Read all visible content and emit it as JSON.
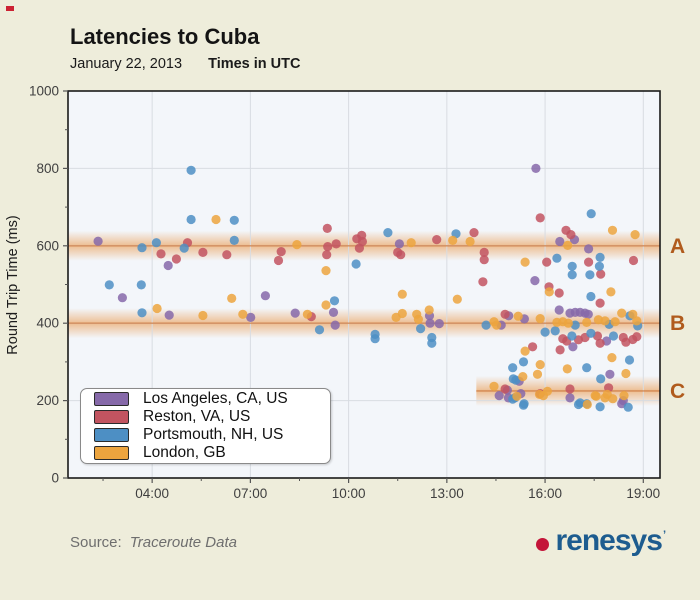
{
  "header": {
    "title": "Latencies to Cuba",
    "date": "January 22, 2013",
    "times_note": "Times in UTC"
  },
  "footer": {
    "source_label": "Source:",
    "source_value": "Traceroute Data",
    "logo_text": "renesys",
    "logo_mark": "’"
  },
  "colors": {
    "page_bg": "#eeeddb",
    "plot_bg": "#f3f6fa",
    "grid": "#d8dce2",
    "plot_border": "#1a1a1a",
    "tick_text": "#3f3f3f",
    "band_fill": "#e8913f",
    "band_label": "#b05b1d",
    "logo_blue": "#1d5c8f",
    "logo_red": "#c41539"
  },
  "chart_data": {
    "type": "scatter",
    "title": "Latencies to Cuba",
    "ylabel": "Round Trip Time (ms)",
    "xlabel": "",
    "ylim": [
      0,
      1000
    ],
    "xlim_hours": [
      1.43,
      19.51
    ],
    "grid": true,
    "legend_position": "bottom-left",
    "y_ticks": [
      0,
      200,
      400,
      600,
      800,
      1000
    ],
    "y_minor_step": 100,
    "x_ticks": [
      {
        "hour": 4,
        "label": "04:00"
      },
      {
        "hour": 7,
        "label": "07:00"
      },
      {
        "hour": 10,
        "label": "10:00"
      },
      {
        "hour": 13,
        "label": "13:00"
      },
      {
        "hour": 16,
        "label": "16:00"
      },
      {
        "hour": 19,
        "label": "19:00"
      }
    ],
    "x_minor_hours": [
      2.5,
      5.5,
      8.5,
      11.5,
      14.5,
      17.5
    ],
    "bands": [
      {
        "label": "A",
        "value": 600,
        "start_hour": 1.43,
        "end_hour": 19.51
      },
      {
        "label": "B",
        "value": 400,
        "start_hour": 1.43,
        "end_hour": 19.51
      },
      {
        "label": "C",
        "value": 225,
        "start_hour": 13.9,
        "end_hour": 19.51
      }
    ],
    "series": [
      {
        "name": "Los Angeles, CA, US",
        "color": "#8669a9",
        "points": [
          [
            2.35,
            612
          ],
          [
            3.09,
            466
          ],
          [
            4.49,
            549
          ],
          [
            4.52,
            421
          ],
          [
            7.01,
            415
          ],
          [
            7.46,
            471
          ],
          [
            8.37,
            426
          ],
          [
            9.54,
            428
          ],
          [
            9.59,
            395
          ],
          [
            11.55,
            605
          ],
          [
            12.47,
            419
          ],
          [
            12.49,
            400
          ],
          [
            12.77,
            399
          ],
          [
            14.6,
            213
          ],
          [
            14.66,
            395
          ],
          [
            14.85,
            227
          ],
          [
            14.88,
            207
          ],
          [
            14.89,
            419
          ],
          [
            15.21,
            250
          ],
          [
            15.26,
            218
          ],
          [
            15.37,
            411
          ],
          [
            15.69,
            510
          ],
          [
            15.72,
            800
          ],
          [
            16.43,
            434
          ],
          [
            16.45,
            611
          ],
          [
            16.76,
            426
          ],
          [
            16.76,
            207
          ],
          [
            16.85,
            339
          ],
          [
            16.9,
            616
          ],
          [
            16.92,
            428
          ],
          [
            17.07,
            428
          ],
          [
            17.22,
            426
          ],
          [
            17.32,
            423
          ],
          [
            17.33,
            592
          ],
          [
            17.88,
            354
          ],
          [
            17.98,
            268
          ],
          [
            18.34,
            192
          ],
          [
            18.39,
            200
          ]
        ]
      },
      {
        "name": "Reston, VA, US",
        "color": "#c25460",
        "points": [
          [
            4.27,
            579
          ],
          [
            4.74,
            566
          ],
          [
            5.08,
            608
          ],
          [
            5.55,
            583
          ],
          [
            6.28,
            577
          ],
          [
            7.86,
            562
          ],
          [
            7.94,
            585
          ],
          [
            8.86,
            417
          ],
          [
            9.33,
            577
          ],
          [
            9.35,
            645
          ],
          [
            9.36,
            598
          ],
          [
            9.62,
            605
          ],
          [
            10.25,
            618
          ],
          [
            10.33,
            594
          ],
          [
            10.4,
            627
          ],
          [
            10.42,
            611
          ],
          [
            11.5,
            583
          ],
          [
            11.59,
            577
          ],
          [
            12.69,
            616
          ],
          [
            13.83,
            634
          ],
          [
            14.1,
            507
          ],
          [
            14.14,
            583
          ],
          [
            14.14,
            564
          ],
          [
            14.78,
            230
          ],
          [
            14.78,
            423
          ],
          [
            15.62,
            339
          ],
          [
            15.85,
            672
          ],
          [
            15.85,
            218
          ],
          [
            16.05,
            558
          ],
          [
            16.12,
            494
          ],
          [
            16.43,
            478
          ],
          [
            16.46,
            331
          ],
          [
            16.54,
            360
          ],
          [
            16.64,
            640
          ],
          [
            16.66,
            354
          ],
          [
            16.76,
            230
          ],
          [
            16.79,
            629
          ],
          [
            17.02,
            357
          ],
          [
            17.22,
            363
          ],
          [
            17.33,
            558
          ],
          [
            17.6,
            367
          ],
          [
            17.68,
            348
          ],
          [
            17.68,
            452
          ],
          [
            17.7,
            527
          ],
          [
            17.94,
            233
          ],
          [
            18.39,
            363
          ],
          [
            18.47,
            351
          ],
          [
            18.68,
            358
          ],
          [
            18.7,
            562
          ],
          [
            18.8,
            365
          ]
        ]
      },
      {
        "name": "Portsmouth, NH, US",
        "color": "#4d8fc4",
        "points": [
          [
            2.69,
            499
          ],
          [
            3.67,
            499
          ],
          [
            3.69,
            595
          ],
          [
            3.69,
            427
          ],
          [
            4.13,
            608
          ],
          [
            4.98,
            594
          ],
          [
            5.19,
            795
          ],
          [
            5.19,
            668
          ],
          [
            6.51,
            666
          ],
          [
            6.51,
            614
          ],
          [
            9.11,
            383
          ],
          [
            9.57,
            458
          ],
          [
            10.23,
            553
          ],
          [
            10.81,
            371
          ],
          [
            10.81,
            360
          ],
          [
            11.2,
            634
          ],
          [
            12.2,
            386
          ],
          [
            12.54,
            363
          ],
          [
            12.54,
            348
          ],
          [
            13.28,
            631
          ],
          [
            14.2,
            395
          ],
          [
            15.01,
            204
          ],
          [
            15.01,
            285
          ],
          [
            15.03,
            256
          ],
          [
            15.08,
            207
          ],
          [
            15.11,
            253
          ],
          [
            15.34,
            188
          ],
          [
            15.34,
            300
          ],
          [
            15.36,
            192
          ],
          [
            16.0,
            377
          ],
          [
            16.31,
            380
          ],
          [
            16.36,
            568
          ],
          [
            16.82,
            367
          ],
          [
            16.83,
            547
          ],
          [
            16.83,
            525
          ],
          [
            16.92,
            395
          ],
          [
            17.02,
            190
          ],
          [
            17.07,
            194
          ],
          [
            17.27,
            192
          ],
          [
            17.27,
            285
          ],
          [
            17.37,
            525
          ],
          [
            17.4,
            374
          ],
          [
            17.4,
            469
          ],
          [
            17.41,
            683
          ],
          [
            17.66,
            547
          ],
          [
            17.68,
            570
          ],
          [
            17.68,
            184
          ],
          [
            17.7,
            256
          ],
          [
            17.96,
            397
          ],
          [
            18.09,
            367
          ],
          [
            18.54,
            183
          ],
          [
            18.58,
            305
          ],
          [
            18.59,
            419
          ],
          [
            18.83,
            393
          ]
        ]
      },
      {
        "name": "London, GB",
        "color": "#eca43e",
        "points": [
          [
            4.15,
            438
          ],
          [
            5.55,
            420
          ],
          [
            5.95,
            668
          ],
          [
            6.43,
            464
          ],
          [
            6.77,
            423
          ],
          [
            8.42,
            603
          ],
          [
            8.74,
            423
          ],
          [
            9.31,
            536
          ],
          [
            9.31,
            447
          ],
          [
            11.45,
            415
          ],
          [
            11.64,
            425
          ],
          [
            11.64,
            475
          ],
          [
            11.91,
            608
          ],
          [
            12.08,
            423
          ],
          [
            12.13,
            410
          ],
          [
            12.46,
            434
          ],
          [
            13.18,
            614
          ],
          [
            13.32,
            462
          ],
          [
            13.71,
            611
          ],
          [
            14.44,
            404
          ],
          [
            14.44,
            237
          ],
          [
            14.52,
            395
          ],
          [
            15.14,
            211
          ],
          [
            15.18,
            418
          ],
          [
            15.32,
            262
          ],
          [
            15.39,
            328
          ],
          [
            15.39,
            558
          ],
          [
            15.77,
            268
          ],
          [
            15.83,
            216
          ],
          [
            15.85,
            293
          ],
          [
            15.85,
            412
          ],
          [
            15.95,
            213
          ],
          [
            16.07,
            224
          ],
          [
            16.13,
            481
          ],
          [
            16.36,
            402
          ],
          [
            16.54,
            404
          ],
          [
            16.69,
            601
          ],
          [
            16.68,
            282
          ],
          [
            16.71,
            400
          ],
          [
            17.27,
            402
          ],
          [
            17.29,
            190
          ],
          [
            17.53,
            213
          ],
          [
            17.56,
            211
          ],
          [
            17.63,
            409
          ],
          [
            17.83,
            406
          ],
          [
            17.83,
            207
          ],
          [
            17.9,
            216
          ],
          [
            18.01,
            481
          ],
          [
            18.04,
            311
          ],
          [
            18.06,
            640
          ],
          [
            18.07,
            205
          ],
          [
            18.14,
            404
          ],
          [
            18.34,
            426
          ],
          [
            18.41,
            213
          ],
          [
            18.47,
            270
          ],
          [
            18.68,
            423
          ],
          [
            18.75,
            629
          ],
          [
            18.8,
            406
          ]
        ]
      }
    ]
  }
}
